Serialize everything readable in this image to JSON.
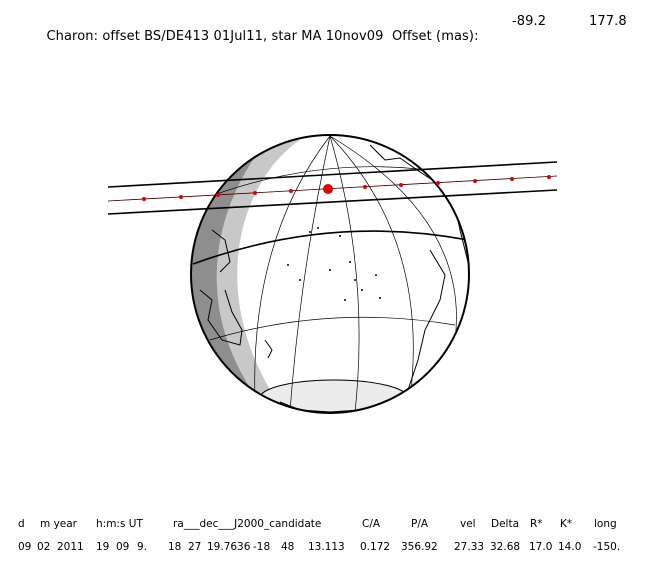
{
  "title": {
    "text": "Charon: offset BS/DE413 01Jul11, star MA 10nov09  Offset (mas):",
    "offset_x": "-89.2",
    "offset_y": "177.8"
  },
  "table": {
    "headers": {
      "d": "d",
      "m_year": "m year",
      "hms": "h:m:s UT",
      "radec": "ra___dec___J2000_candidate",
      "ca": "C/A",
      "pa": "P/A",
      "vel": "vel",
      "delta": "Delta",
      "rstar": "R*",
      "kstar": "K*",
      "long": "long"
    },
    "values": {
      "d": "09",
      "m": "02",
      "year": "2011",
      "h": "19",
      "mi": "09",
      "s": "9.",
      "ra_h": "18",
      "ra_m": "27",
      "ra_s": "19.7636",
      "dec_d": "-18",
      "dec_m": "48",
      "dec_s": "13.113",
      "ca": "0.172",
      "pa": "356.92",
      "vel": "27.33",
      "delta": "32.68",
      "rstar": "17.0",
      "kstar": "14.0",
      "long": "-150."
    }
  },
  "colors": {
    "line": "#000000",
    "night": "#c8c8c8",
    "twilight": "#8e8e8e",
    "marker": "#e00000"
  }
}
